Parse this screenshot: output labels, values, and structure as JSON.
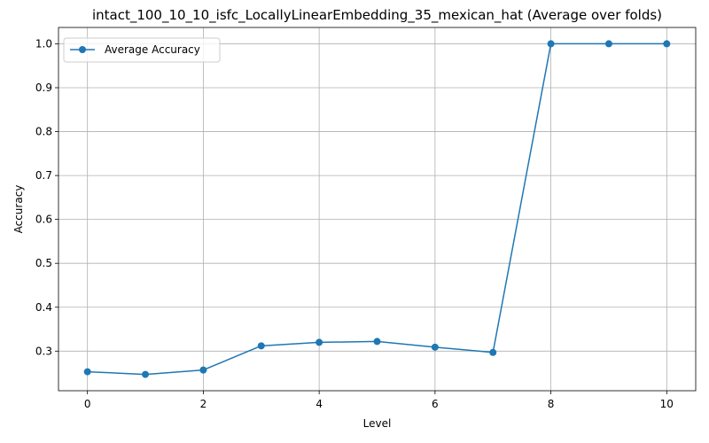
{
  "chart_data": {
    "type": "line",
    "title": "intact_100_10_10_isfc_LocallyLinearEmbedding_35_mexican_hat (Average over folds)",
    "xlabel": "Level",
    "ylabel": "Accuracy",
    "x": [
      0,
      1,
      2,
      3,
      4,
      5,
      6,
      7,
      8,
      9,
      10
    ],
    "series": [
      {
        "name": "Average Accuracy",
        "values": [
          0.253,
          0.247,
          0.257,
          0.312,
          0.32,
          0.322,
          0.309,
          0.297,
          1.0,
          1.0,
          1.0
        ],
        "color": "#1f77b4",
        "marker": "circle"
      }
    ],
    "xlim": [
      -0.5,
      10.5
    ],
    "ylim": [
      0.2098,
      1.0372
    ],
    "xticks": [
      0,
      2,
      4,
      6,
      8,
      10
    ],
    "yticks": [
      0.3,
      0.4,
      0.5,
      0.6,
      0.7,
      0.8,
      0.9,
      1.0
    ],
    "xtick_labels": [
      "0",
      "2",
      "4",
      "6",
      "8",
      "10"
    ],
    "ytick_labels": [
      "0.3",
      "0.4",
      "0.5",
      "0.6",
      "0.7",
      "0.8",
      "0.9",
      "1.0"
    ],
    "grid": true,
    "legend_position": "top-left"
  }
}
